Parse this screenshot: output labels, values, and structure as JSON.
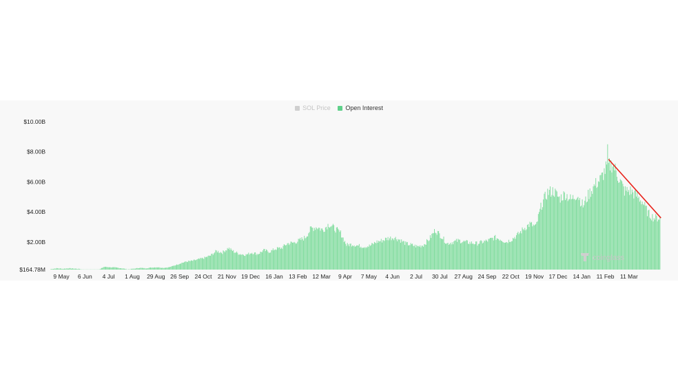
{
  "legend": {
    "items": [
      {
        "label": "SOL Price",
        "color": "#cfcfcf",
        "active": false
      },
      {
        "label": "Open Interest",
        "color": "#5fd08a",
        "active": true
      }
    ]
  },
  "watermark": "coinglass",
  "colors": {
    "bar": "#7fdc9d",
    "bar_edge": "#4fbf78",
    "trendline": "#e8241c",
    "background": "#f8f8f8"
  },
  "chart_data": {
    "type": "bar",
    "series": [
      {
        "name": "Open Interest"
      }
    ],
    "y_ticks": [
      "$164.78M",
      "$2.00B",
      "$4.00B",
      "$6.00B",
      "$8.00B",
      "$10.00B"
    ],
    "y_tick_values": [
      0.16478,
      2,
      4,
      6,
      8,
      10
    ],
    "ylim": [
      0.16478,
      10
    ],
    "x_ticks": [
      "9 May",
      "6 Jun",
      "4 Jul",
      "1 Aug",
      "29 Aug",
      "26 Sep",
      "24 Oct",
      "21 Nov",
      "19 Dec",
      "16 Jan",
      "13 Feb",
      "12 Mar",
      "9 Apr",
      "7 May",
      "4 Jun",
      "2 Jul",
      "30 Jul",
      "27 Aug",
      "24 Sep",
      "22 Oct",
      "19 Nov",
      "17 Dec",
      "14 Jan",
      "11 Feb",
      "11 Mar"
    ],
    "y_unit": "B USD",
    "x_index_note": "values at each x tick, then interpolated per day",
    "anchors": [
      [
        0,
        0.2
      ],
      [
        7,
        0.25
      ],
      [
        14,
        0.22
      ],
      [
        21,
        0.25
      ],
      [
        28,
        0.23
      ],
      [
        35,
        0.2
      ],
      [
        42,
        0.05
      ],
      [
        49,
        0.05
      ],
      [
        56,
        0.12
      ],
      [
        63,
        0.35
      ],
      [
        70,
        0.32
      ],
      [
        77,
        0.3
      ],
      [
        84,
        0.25
      ],
      [
        91,
        0.18
      ],
      [
        98,
        0.22
      ],
      [
        105,
        0.28
      ],
      [
        112,
        0.25
      ],
      [
        119,
        0.3
      ],
      [
        126,
        0.32
      ],
      [
        133,
        0.28
      ],
      [
        140,
        0.32
      ],
      [
        147,
        0.45
      ],
      [
        154,
        0.6
      ],
      [
        161,
        0.7
      ],
      [
        168,
        0.75
      ],
      [
        175,
        0.85
      ],
      [
        182,
        0.95
      ],
      [
        189,
        1.1
      ],
      [
        196,
        1.4
      ],
      [
        203,
        1.3
      ],
      [
        210,
        1.6
      ],
      [
        217,
        1.35
      ],
      [
        224,
        1.2
      ],
      [
        231,
        1.15
      ],
      [
        238,
        1.3
      ],
      [
        245,
        1.2
      ],
      [
        252,
        1.45
      ],
      [
        259,
        1.35
      ],
      [
        266,
        1.55
      ],
      [
        273,
        1.6
      ],
      [
        280,
        1.9
      ],
      [
        287,
        1.95
      ],
      [
        294,
        2.1
      ],
      [
        301,
        2.3
      ],
      [
        308,
        2.9
      ],
      [
        315,
        3.0
      ],
      [
        322,
        2.8
      ],
      [
        329,
        3.2
      ],
      [
        336,
        2.9
      ],
      [
        343,
        2.6
      ],
      [
        350,
        1.8
      ],
      [
        357,
        1.85
      ],
      [
        364,
        1.75
      ],
      [
        371,
        1.7
      ],
      [
        378,
        1.75
      ],
      [
        385,
        2.0
      ],
      [
        392,
        2.1
      ],
      [
        399,
        2.25
      ],
      [
        406,
        2.3
      ],
      [
        413,
        2.15
      ],
      [
        420,
        1.9
      ],
      [
        427,
        1.8
      ],
      [
        434,
        1.7
      ],
      [
        441,
        1.8
      ],
      [
        448,
        2.2
      ],
      [
        455,
        2.8
      ],
      [
        462,
        2.4
      ],
      [
        469,
        1.9
      ],
      [
        476,
        2.0
      ],
      [
        483,
        2.1
      ],
      [
        490,
        2.0
      ],
      [
        497,
        1.95
      ],
      [
        504,
        1.9
      ],
      [
        511,
        2.0
      ],
      [
        518,
        2.1
      ],
      [
        525,
        2.3
      ],
      [
        532,
        2.2
      ],
      [
        539,
        2.0
      ],
      [
        546,
        2.2
      ],
      [
        553,
        2.5
      ],
      [
        560,
        2.9
      ],
      [
        567,
        3.2
      ],
      [
        574,
        3.0
      ],
      [
        581,
        4.5
      ],
      [
        588,
        5.3
      ],
      [
        595,
        5.4
      ],
      [
        602,
        4.9
      ],
      [
        609,
        5.2
      ],
      [
        616,
        4.8
      ],
      [
        623,
        5.2
      ],
      [
        630,
        4.4
      ],
      [
        637,
        5.2
      ],
      [
        644,
        5.8
      ],
      [
        651,
        6.2
      ],
      [
        658,
        7.0
      ],
      [
        665,
        7.2
      ],
      [
        672,
        6.3
      ],
      [
        679,
        5.4
      ],
      [
        686,
        5.4
      ],
      [
        693,
        5.1
      ],
      [
        700,
        4.7
      ],
      [
        707,
        3.9
      ],
      [
        714,
        3.6
      ],
      [
        721,
        3.6
      ]
    ],
    "spike": {
      "x": 659,
      "value": 8.5
    },
    "annotation": {
      "type": "trendline",
      "from": [
        660,
        7.5
      ],
      "to": [
        722,
        3.6
      ],
      "color": "#e8241c"
    }
  }
}
